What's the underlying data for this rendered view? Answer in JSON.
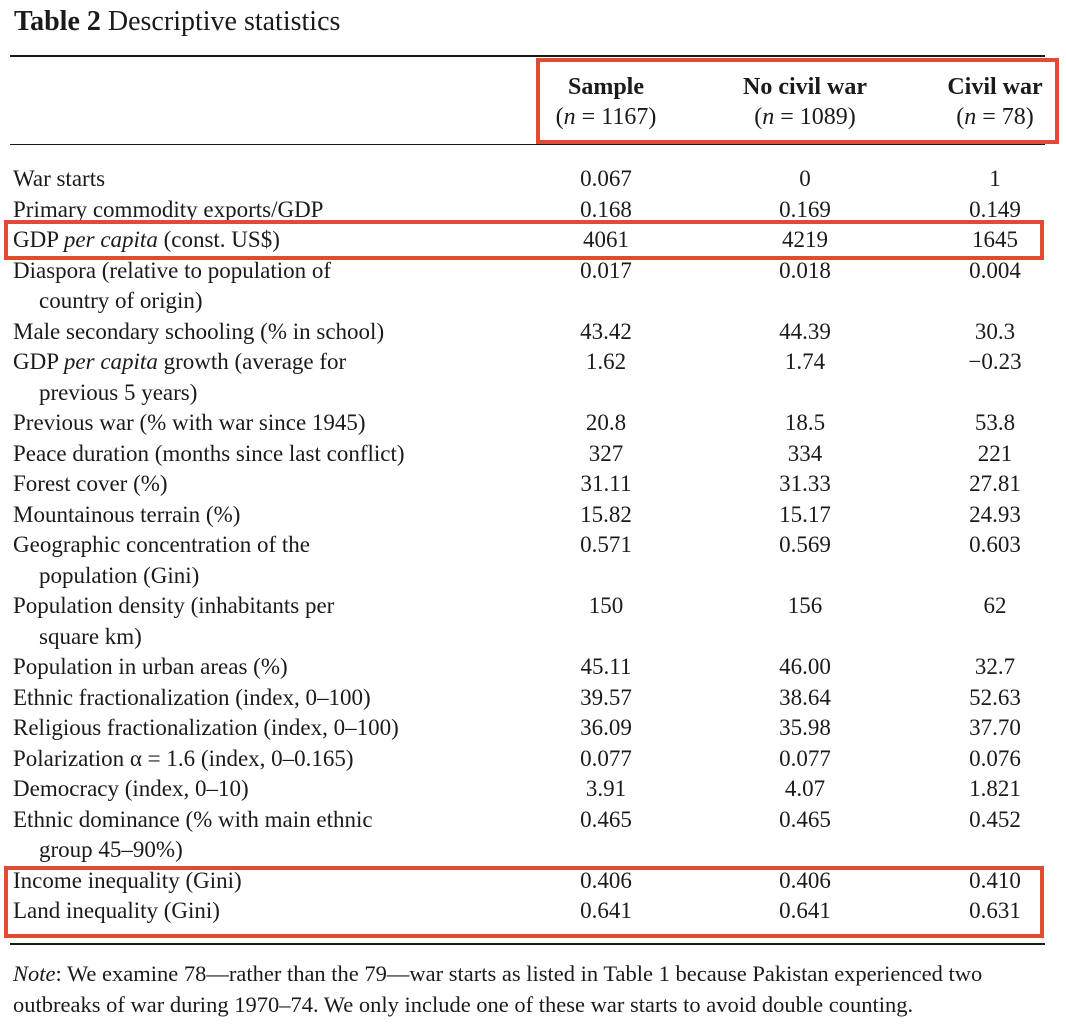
{
  "table": {
    "label": "Table 2",
    "caption": "Descriptive statistics",
    "columns": [
      {
        "name": "Sample",
        "n": "1167"
      },
      {
        "name": "No civil war",
        "n": "1089"
      },
      {
        "name": "Civil war",
        "n": "78"
      }
    ],
    "n_prefix": "n",
    "n_eq": " = ",
    "rows": [
      {
        "label": "War starts",
        "values": [
          "0.067",
          "0",
          "1"
        ]
      },
      {
        "label": "Primary commodity exports/GDP",
        "values": [
          "0.168",
          "0.169",
          "0.149"
        ]
      },
      {
        "label_pre": "GDP ",
        "label_em": "per capita",
        "label_post": " (const. US$)",
        "values": [
          "4061",
          "4219",
          "1645"
        ]
      },
      {
        "label": "Diaspora (relative to population of",
        "label_cont": "country of origin)",
        "values": [
          "0.017",
          "0.018",
          "0.004"
        ]
      },
      {
        "label": "Male secondary schooling (% in school)",
        "values": [
          "43.42",
          "44.39",
          "30.3"
        ]
      },
      {
        "label_pre": "GDP ",
        "label_em": "per capita",
        "label_post": " growth (average for",
        "label_cont": "previous 5 years)",
        "values": [
          "1.62",
          "1.74",
          "−0.23"
        ]
      },
      {
        "label": "Previous war (% with war since 1945)",
        "values": [
          "20.8",
          "18.5",
          "53.8"
        ]
      },
      {
        "label": "Peace duration (months since last conflict)",
        "values": [
          "327",
          "334",
          "221"
        ]
      },
      {
        "label": "Forest cover (%)",
        "values": [
          "31.11",
          "31.33",
          "27.81"
        ]
      },
      {
        "label": "Mountainous terrain (%)",
        "values": [
          "15.82",
          "15.17",
          "24.93"
        ]
      },
      {
        "label": "Geographic concentration of the",
        "label_cont": "population (Gini)",
        "values": [
          "0.571",
          "0.569",
          "0.603"
        ]
      },
      {
        "label": "Population density (inhabitants per",
        "label_cont": "square km)",
        "values": [
          "150",
          "156",
          "62"
        ]
      },
      {
        "label": "Population in urban areas (%)",
        "values": [
          "45.11",
          "46.00",
          "32.7"
        ]
      },
      {
        "label": "Ethnic fractionalization (index, 0–100)",
        "values": [
          "39.57",
          "38.64",
          "52.63"
        ]
      },
      {
        "label": "Religious fractionalization (index, 0–100)",
        "values": [
          "36.09",
          "35.98",
          "37.70"
        ]
      },
      {
        "label": "Polarization α = 1.6 (index, 0–0.165)",
        "values": [
          "0.077",
          "0.077",
          "0.076"
        ]
      },
      {
        "label": "Democracy (index, 0–10)",
        "values": [
          "3.91",
          "4.07",
          "1.821"
        ]
      },
      {
        "label": "Ethnic dominance (% with main ethnic",
        "label_cont": "group 45–90%)",
        "values": [
          "0.465",
          "0.465",
          "0.452"
        ]
      },
      {
        "label": "Income inequality (Gini)",
        "values": [
          "0.406",
          "0.406",
          "0.410"
        ]
      },
      {
        "label": "Land inequality (Gini)",
        "values": [
          "0.641",
          "0.641",
          "0.631"
        ]
      }
    ],
    "note": {
      "prefix": "Note",
      "text": ": We examine 78—rather than the 79—war starts as listed in Table 1 because Pakistan experienced two outbreaks of war during 1970–74. We only include one of these war starts to avoid double counting."
    }
  },
  "highlight_color": "#e04b32"
}
